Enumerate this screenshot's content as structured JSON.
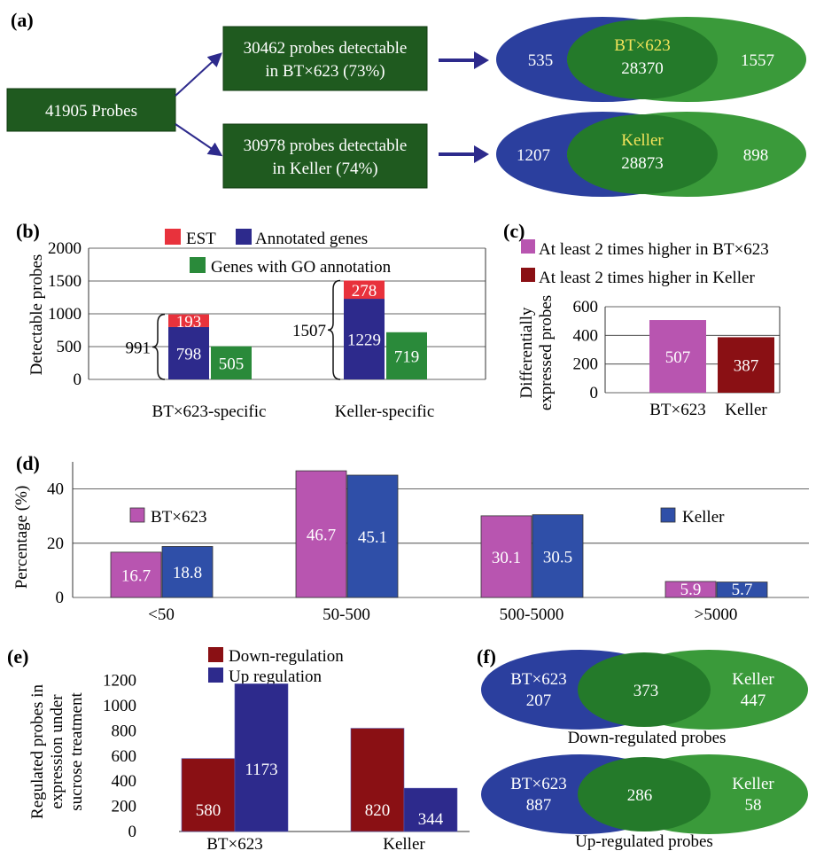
{
  "panels": {
    "a": "(a)",
    "b": "(b)",
    "c": "(c)",
    "d": "(d)",
    "e": "(e)",
    "f": "(f)"
  },
  "colors": {
    "dark_green": "#1f5a1f",
    "venn_blue": "#2b3f9e",
    "venn_green": "#3a9a3a",
    "venn_overlap": "#247a2a",
    "red": "#e8323c",
    "navy": "#2d2a8c",
    "green": "#2a8a3a",
    "magenta": "#b855b0",
    "maroon": "#8a1014",
    "blue": "#2f4fa8",
    "yellow": "#f2e35a"
  },
  "a": {
    "source_box": "41905 Probes",
    "box1": [
      "30462 probes detectable",
      "in BT×623 (73%)"
    ],
    "box2": [
      "30978 probes detectable",
      "in Keller (74%)"
    ],
    "venn1": {
      "left": "535",
      "center_label": "BT×623",
      "center": "28370",
      "right": "1557"
    },
    "venn2": {
      "left": "1207",
      "center_label": "Keller",
      "center": "28873",
      "right": "898"
    }
  },
  "chart_data": [
    {
      "type": "bar",
      "panel": "b",
      "ylabel": "Detectable probes",
      "ylim": [
        0,
        2000
      ],
      "yticks": [
        "0",
        "500",
        "1000",
        "1500",
        "2000"
      ],
      "categories": [
        "BT×623-specific",
        "Keller-specific"
      ],
      "stacked_series": [
        {
          "name": "Annotated genes",
          "values": [
            798,
            1229
          ]
        },
        {
          "name": "EST",
          "values": [
            193,
            278
          ]
        }
      ],
      "series": [
        {
          "name": "Genes with GO annotation",
          "values": [
            505,
            719
          ]
        }
      ],
      "brace_totals": [
        "991",
        "1507"
      ]
    },
    {
      "type": "bar",
      "panel": "c",
      "ylabel": [
        "Differentially",
        "expressed probes"
      ],
      "ylim": [
        0,
        600
      ],
      "yticks": [
        "0",
        "200",
        "400",
        "600"
      ],
      "categories": [
        "BT×623",
        "Keller"
      ],
      "values": [
        507,
        387
      ],
      "legend": [
        "At least 2 times higher in BT×623",
        "At least 2 times higher in Keller"
      ]
    },
    {
      "type": "bar",
      "panel": "d",
      "ylabel": "Percentage (%)",
      "ylim": [
        0,
        50
      ],
      "yticks": [
        "0",
        "20",
        "40"
      ],
      "categories": [
        "<50",
        "50-500",
        "500-5000",
        ">5000"
      ],
      "series": [
        {
          "name": "BT×623",
          "values": [
            16.7,
            46.7,
            30.1,
            5.9
          ]
        },
        {
          "name": "Keller",
          "values": [
            18.8,
            45.1,
            30.5,
            5.7
          ]
        }
      ]
    },
    {
      "type": "bar",
      "panel": "e",
      "ylabel": [
        "Regulated probes in",
        "expression under",
        "sucrose treatment"
      ],
      "ylim": [
        0,
        1300
      ],
      "yticks": [
        "0",
        "200",
        "400",
        "600",
        "800",
        "1000",
        "1200"
      ],
      "categories": [
        "BT×623",
        "Keller"
      ],
      "series": [
        {
          "name": "Down-regulation",
          "values": [
            580,
            820
          ]
        },
        {
          "name": "Up regulation",
          "values": [
            1173,
            344
          ]
        }
      ]
    }
  ],
  "f": {
    "venn_down": {
      "left_label": "BT×623",
      "left": "207",
      "center": "373",
      "right_label": "Keller",
      "right": "447",
      "caption": "Down-regulated probes"
    },
    "venn_up": {
      "left_label": "BT×623",
      "left": "887",
      "center": "286",
      "right_label": "Keller",
      "right": "58",
      "caption": "Up-regulated probes"
    }
  }
}
